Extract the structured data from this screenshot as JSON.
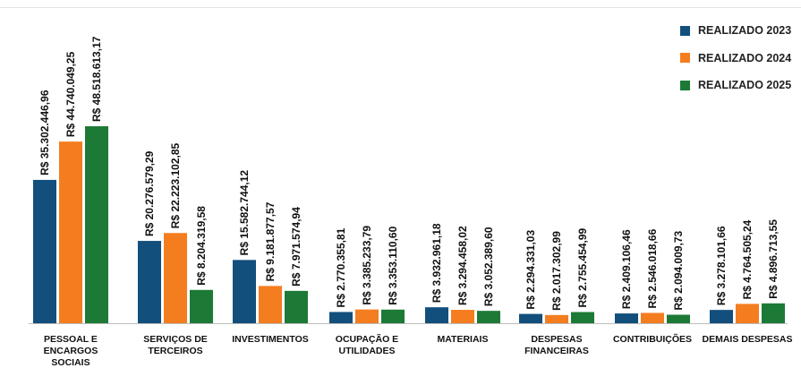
{
  "chart_data": {
    "type": "bar",
    "title": "",
    "xlabel": "",
    "ylabel": "",
    "ylim": [
      0,
      50000000
    ],
    "grid": false,
    "legend_position": "top-right",
    "categories": [
      [
        "PESSOAL E",
        "ENCARGOS",
        "SOCIAIS"
      ],
      [
        "SERVIÇOS DE",
        "TERCEIROS"
      ],
      [
        "INVESTIMENTOS"
      ],
      [
        "OCUPAÇÃO E",
        "UTILIDADES"
      ],
      [
        "MATERIAIS"
      ],
      [
        "DESPESAS",
        "FINANCEIRAS"
      ],
      [
        "CONTRIBUIÇÕES"
      ],
      [
        "DEMAIS DESPESAS"
      ]
    ],
    "series": [
      {
        "name": "REALIZADO 2023",
        "color": "#124f7c",
        "values": [
          35302446.96,
          20276579.29,
          15582744.12,
          2770355.81,
          3932961.18,
          2294331.03,
          2409106.46,
          3278101.66
        ],
        "labels": [
          "R$ 35.302.446,96",
          "R$ 20.276.579,29",
          "R$ 15.582.744,12",
          "R$ 2.770.355,81",
          "R$ 3.932.961,18",
          "R$ 2.294.331,03",
          "R$ 2.409.106,46",
          "R$ 3.278.101,66"
        ]
      },
      {
        "name": "REALIZADO 2024",
        "color": "#f47d20",
        "values": [
          44740049.25,
          22223102.85,
          9181877.57,
          3385233.79,
          3294458.02,
          2017302.99,
          2546018.66,
          4764505.24
        ],
        "labels": [
          "R$ 44.740.049,25",
          "R$ 22.223.102,85",
          "R$ 9.181.877,57",
          "R$ 3.385.233,79",
          "R$ 3.294.458,02",
          "R$ 2.017.302,99",
          "R$ 2.546.018,66",
          "R$ 4.764.505,24"
        ]
      },
      {
        "name": "REALIZADO 2025",
        "color": "#1d7a36",
        "values": [
          48518613.17,
          8204319.58,
          7971574.94,
          3353110.6,
          3052389.6,
          2755454.99,
          2094009.73,
          4896713.55
        ],
        "labels": [
          "R$ 48.518.613,17",
          "R$ 8.204.319,58",
          "R$ 7.971.574,94",
          "R$ 3.353.110,60",
          "R$ 3.052.389,60",
          "R$ 2.755.454,99",
          "R$ 2.094.009,73",
          "R$ 4.896.713,55"
        ]
      }
    ]
  }
}
